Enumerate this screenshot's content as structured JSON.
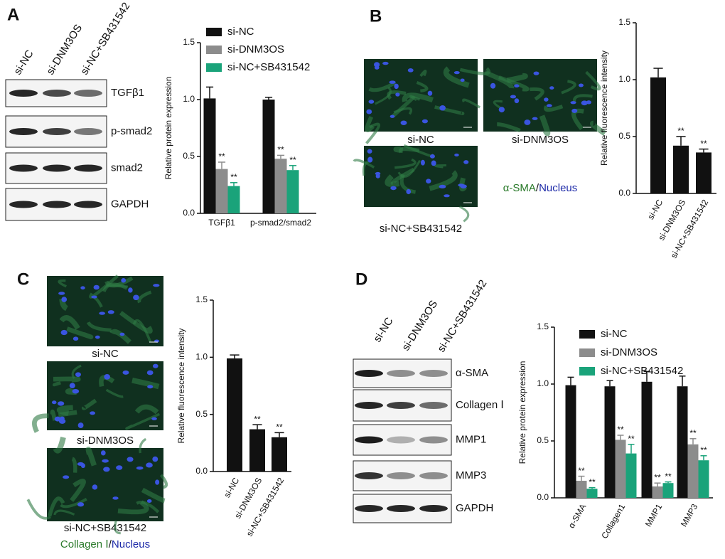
{
  "chart_data": [
    {
      "type": "bar",
      "ylabel": "Relative protein expression",
      "categories": [
        "TGFβ1",
        "p-smad2/smad2"
      ],
      "series": [
        {
          "name": "si-NC",
          "color": "#111111",
          "values": [
            1.01,
            1.0
          ],
          "errors": [
            0.1,
            0.02
          ]
        },
        {
          "name": "si-DNM3OS",
          "color": "#8c8c8c",
          "values": [
            0.39,
            0.48
          ],
          "errors": [
            0.06,
            0.03
          ],
          "significance": [
            "**",
            "**"
          ]
        },
        {
          "name": "si-NC+SB431542",
          "color": "#1aa37a",
          "values": [
            0.24,
            0.38
          ],
          "errors": [
            0.03,
            0.04
          ],
          "significance": [
            "**",
            "**"
          ]
        }
      ],
      "ylim": [
        0,
        1.5
      ],
      "yticks": [
        {
          "value": 0,
          "label": "0.0"
        },
        {
          "value": 0.5,
          "label": "0.5"
        },
        {
          "value": 1,
          "label": "1.0"
        },
        {
          "value": 1.5,
          "label": "1.5"
        }
      ],
      "legend": "upper left"
    },
    {
      "type": "bar",
      "ylabel": "Relative  fluorescence intensity",
      "categories": [
        "si-NC",
        "si-DNM3OS",
        "si-NC+SB431542"
      ],
      "values": [
        1.02,
        0.42,
        0.36
      ],
      "errors": [
        0.08,
        0.08,
        0.03
      ],
      "significance": [
        null,
        "**",
        "**"
      ],
      "color": "#111111",
      "ylim": [
        0,
        1.5
      ],
      "yticks": [
        {
          "value": 0,
          "label": "0.0"
        },
        {
          "value": 0.5,
          "label": "0.5"
        },
        {
          "value": 1,
          "label": "1.0"
        },
        {
          "value": 1.5,
          "label": "1.5"
        }
      ]
    },
    {
      "type": "bar",
      "ylabel": "Relative  fluorescence intensity",
      "categories": [
        "si-NC",
        "si-DNM3OS",
        "si-NC+SB431542"
      ],
      "values": [
        0.99,
        0.37,
        0.3
      ],
      "errors": [
        0.03,
        0.04,
        0.04
      ],
      "significance": [
        null,
        "**",
        "**"
      ],
      "color": "#111111",
      "ylim": [
        0,
        1.5
      ],
      "yticks": [
        {
          "value": 0,
          "label": "0.0"
        },
        {
          "value": 0.5,
          "label": "0.5"
        },
        {
          "value": 1,
          "label": "1.0"
        },
        {
          "value": 1.5,
          "label": "1.5"
        }
      ]
    },
    {
      "type": "bar",
      "ylabel": "Relative protein expression",
      "categories": [
        "α-SMA",
        "Collagen1",
        "MMP1",
        "MMP3"
      ],
      "series": [
        {
          "name": "si-NC",
          "color": "#111111",
          "values": [
            0.99,
            0.98,
            1.02,
            0.98
          ],
          "errors": [
            0.07,
            0.05,
            0.09,
            0.09
          ]
        },
        {
          "name": "si-DNM3OS",
          "color": "#8c8c8c",
          "values": [
            0.15,
            0.51,
            0.1,
            0.47
          ],
          "errors": [
            0.04,
            0.04,
            0.03,
            0.05
          ],
          "significance": [
            "**",
            "**",
            "**",
            "**"
          ]
        },
        {
          "name": "si-NC+SB431542",
          "color": "#1aa37a",
          "values": [
            0.08,
            0.39,
            0.13,
            0.33
          ],
          "errors": [
            0.01,
            0.08,
            0.01,
            0.04
          ],
          "significance": [
            "**",
            "**",
            "**",
            "**"
          ]
        }
      ],
      "ylim": [
        0,
        1.5
      ],
      "yticks": [
        {
          "value": 0,
          "label": "0.0"
        },
        {
          "value": 0.5,
          "label": "0.5"
        },
        {
          "value": 1,
          "label": "1.0"
        },
        {
          "value": 1.5,
          "label": "1.5"
        }
      ],
      "legend": "upper left"
    }
  ],
  "figure": {
    "panels": [
      "A",
      "B",
      "C",
      "D"
    ],
    "blot_A": {
      "lanes": [
        "si-NC",
        "si-DNM3OS",
        "si-NC+SB431542"
      ],
      "rows": [
        "TGFβ1",
        "p-smad2",
        "smad2",
        "GAPDH"
      ]
    },
    "images_B": {
      "labels": [
        "si-NC",
        "si-DNM3OS",
        "si-NC+SB431542"
      ],
      "stain": [
        "α-SMA",
        "/",
        "Nucleus"
      ]
    },
    "images_C": {
      "labels": [
        "si-NC",
        "si-DNM3OS",
        "si-NC+SB431542"
      ],
      "stain": [
        "Collagen Ⅰ",
        "/",
        "Nucleus"
      ]
    },
    "blot_D": {
      "lanes": [
        "si-NC",
        "si-DNM3OS",
        "si-NC+SB431542"
      ],
      "rows": [
        "α-SMA",
        "Collagen Ⅰ",
        "MMP1",
        "MMP3",
        "GAPDH"
      ]
    }
  }
}
